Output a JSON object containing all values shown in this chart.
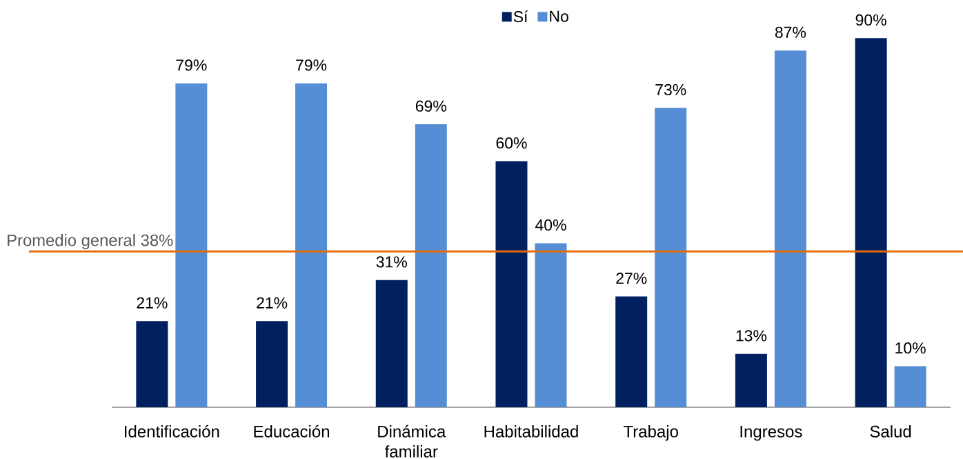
{
  "chart_data": {
    "type": "bar",
    "categories": [
      "Identificación",
      "Educación",
      "Dinámica familiar",
      "Habitabilidad",
      "Trabajo",
      "Ingresos",
      "Salud"
    ],
    "series": [
      {
        "name": "Sí",
        "color": "#002060",
        "values": [
          21,
          21,
          31,
          60,
          27,
          13,
          90
        ],
        "value_labels": [
          "21%",
          "21%",
          "31%",
          "60%",
          "27%",
          "13%",
          "90%"
        ]
      },
      {
        "name": "No",
        "color": "#558ed5",
        "values": [
          79,
          79,
          69,
          40,
          73,
          87,
          10
        ],
        "value_labels": [
          "79%",
          "79%",
          "69%",
          "40%",
          "73%",
          "87%",
          "10%"
        ]
      }
    ],
    "ref_lines": [
      {
        "axis": "y",
        "value": 38,
        "label": "Promedio general 38%",
        "color": "#e46c0a"
      }
    ],
    "legend": "top",
    "tick_labels": "x"
  }
}
